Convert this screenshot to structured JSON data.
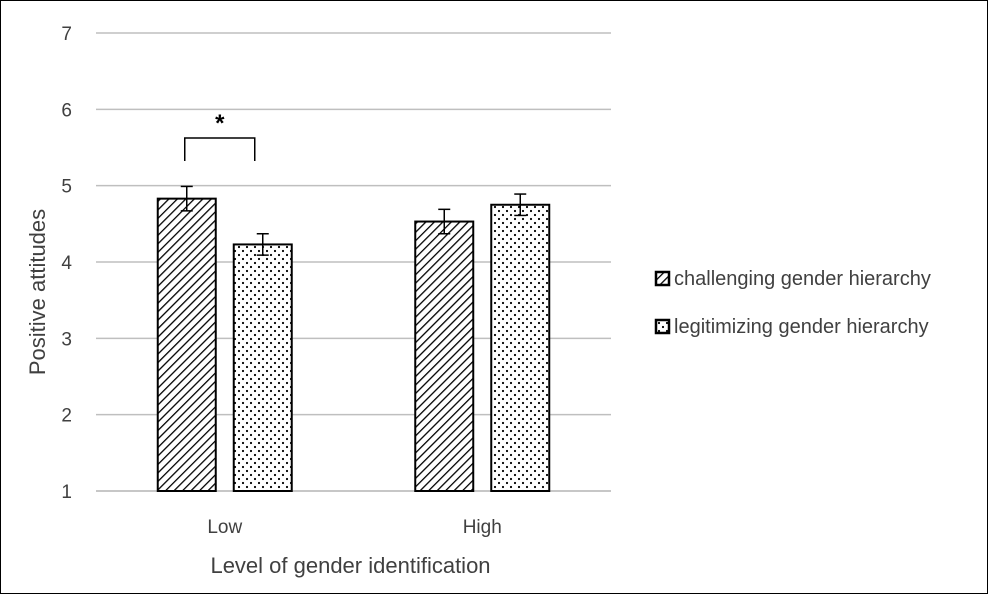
{
  "chart_data": {
    "type": "bar",
    "title": "",
    "xlabel": "Level of gender identification",
    "ylabel": "Positive attitudes",
    "categories": [
      "Low",
      "High"
    ],
    "ylim": [
      1,
      7
    ],
    "yticks": [
      1,
      2,
      3,
      4,
      5,
      6,
      7
    ],
    "grid": true,
    "legend_position": "right",
    "series": [
      {
        "name": "challenging gender hierarchy",
        "values": [
          4.83,
          4.53
        ],
        "error": [
          0.16,
          0.16
        ],
        "pattern": "diagonal-hatch"
      },
      {
        "name": "legitimizing gender hierarchy",
        "values": [
          4.23,
          4.75
        ],
        "error": [
          0.14,
          0.14
        ],
        "pattern": "dots"
      }
    ],
    "annotations": [
      {
        "text": "*",
        "category": "Low",
        "between_series": [
          0,
          1
        ]
      }
    ],
    "colors": {
      "grid": "#bfbfbf",
      "bar_stroke": "#000000",
      "text": "#404040"
    }
  }
}
